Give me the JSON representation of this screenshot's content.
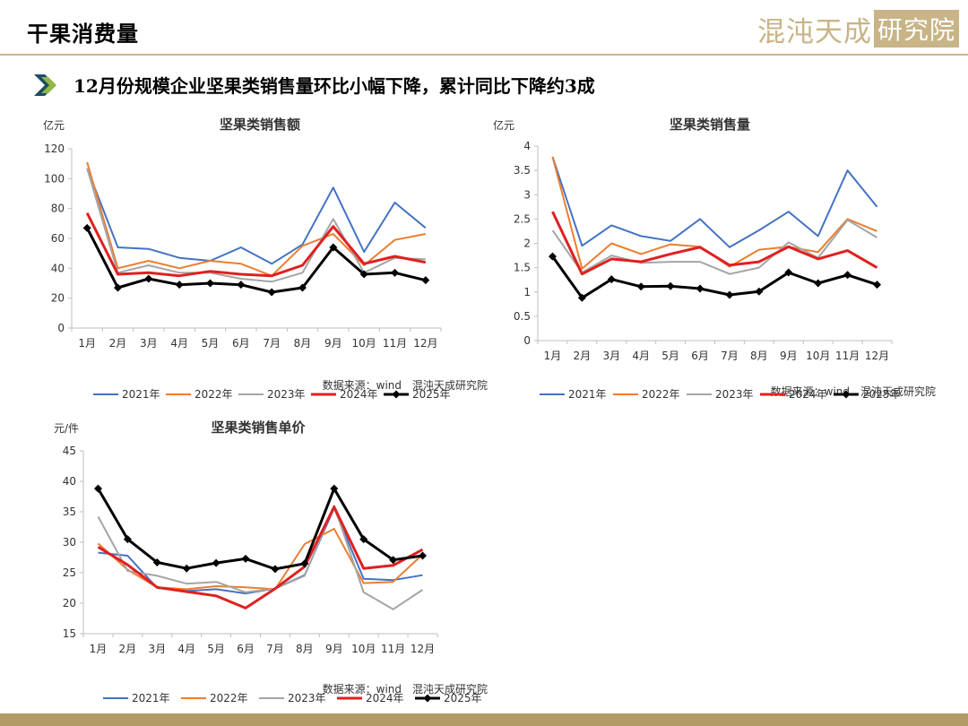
{
  "page": {
    "title": "干果消费量",
    "subtitle": "12月份规模企业坚果类销售量环比小幅下降，累计同比下降约3成",
    "logo_text_main": "混沌天成",
    "logo_text_box": "研究院",
    "icons": {
      "subtitle_marker": "double-chevron-right-icon"
    },
    "colors": {
      "accent": "#c9b68a",
      "footer": "#b39b66",
      "marker_dark": "#1f4e5f",
      "marker_light": "#8fb848"
    }
  },
  "chart_data": [
    {
      "type": "line",
      "title": "坚果类销售额",
      "unit_label": "亿元",
      "source": "数据来源：wind　混沌天成研究院",
      "categories": [
        "1月",
        "2月",
        "3月",
        "4月",
        "5月",
        "6月",
        "7月",
        "8月",
        "9月",
        "10月",
        "11月",
        "12月"
      ],
      "ylim": [
        0,
        120
      ],
      "yticks": [
        "0",
        "20",
        "40",
        "60",
        "80",
        "100",
        "120"
      ],
      "grid": false,
      "legend_position": "bottom",
      "series": [
        {
          "name": "2021年",
          "color": "#4472c4",
          "width": 2,
          "marker": false,
          "values": [
            107,
            54,
            53,
            47,
            45,
            54,
            43,
            56,
            94,
            51,
            84,
            67
          ]
        },
        {
          "name": "2022年",
          "color": "#ed7d31",
          "width": 2,
          "marker": false,
          "values": [
            111,
            40,
            45,
            40,
            45,
            43,
            35,
            55,
            63,
            42,
            59,
            63
          ]
        },
        {
          "name": "2023年",
          "color": "#a5a5a5",
          "width": 2,
          "marker": false,
          "values": [
            107,
            37,
            42,
            37,
            37,
            33,
            31,
            37,
            73,
            37,
            47,
            46
          ]
        },
        {
          "name": "2024年",
          "color": "#e02020",
          "width": 3,
          "marker": false,
          "values": [
            77,
            36,
            37,
            35,
            38,
            36,
            35,
            42,
            68,
            43,
            48,
            44
          ]
        },
        {
          "name": "2025年",
          "color": "#000000",
          "width": 3,
          "marker": true,
          "values": [
            67,
            27,
            33,
            29,
            30,
            29,
            24,
            27,
            54,
            36,
            37,
            32
          ]
        }
      ]
    },
    {
      "type": "line",
      "title": "坚果类销售量",
      "unit_label": "亿元",
      "source": "数据来源：wind　混沌天成研究院",
      "categories": [
        "1月",
        "2月",
        "3月",
        "4月",
        "5月",
        "6月",
        "7月",
        "8月",
        "9月",
        "10月",
        "11月",
        "12月"
      ],
      "ylim": [
        0,
        4
      ],
      "yticks": [
        "0",
        "0.5",
        "1",
        "1.5",
        "2",
        "2.5",
        "3",
        "3.5",
        "4"
      ],
      "grid": false,
      "legend_position": "bottom",
      "series": [
        {
          "name": "2021年",
          "color": "#4472c4",
          "width": 2,
          "marker": false,
          "values": [
            3.78,
            1.95,
            2.37,
            2.15,
            2.05,
            2.5,
            1.92,
            2.27,
            2.65,
            2.15,
            3.5,
            2.75
          ]
        },
        {
          "name": "2022年",
          "color": "#ed7d31",
          "width": 2,
          "marker": false,
          "values": [
            3.78,
            1.48,
            2.0,
            1.78,
            1.98,
            1.93,
            1.52,
            1.87,
            1.93,
            1.82,
            2.5,
            2.25
          ]
        },
        {
          "name": "2023年",
          "color": "#a5a5a5",
          "width": 2,
          "marker": false,
          "values": [
            2.27,
            1.4,
            1.75,
            1.6,
            1.62,
            1.62,
            1.37,
            1.5,
            2.02,
            1.7,
            2.48,
            2.12
          ]
        },
        {
          "name": "2024年",
          "color": "#e02020",
          "width": 3,
          "marker": false,
          "values": [
            2.65,
            1.37,
            1.68,
            1.62,
            1.78,
            1.92,
            1.55,
            1.62,
            1.93,
            1.68,
            1.85,
            1.5
          ]
        },
        {
          "name": "2025年",
          "color": "#000000",
          "width": 3,
          "marker": true,
          "values": [
            1.73,
            0.88,
            1.26,
            1.11,
            1.12,
            1.07,
            0.94,
            1.01,
            1.4,
            1.18,
            1.35,
            1.15
          ]
        }
      ]
    },
    {
      "type": "line",
      "title": "坚果类销售单价",
      "unit_label": "元/件",
      "source": "数据来源：wind　混沌天成研究院",
      "categories": [
        "1月",
        "2月",
        "3月",
        "4月",
        "5月",
        "6月",
        "7月",
        "8月",
        "9月",
        "10月",
        "11月",
        "12月"
      ],
      "ylim": [
        15,
        45
      ],
      "yticks": [
        "15",
        "20",
        "25",
        "30",
        "35",
        "40",
        "45"
      ],
      "grid": false,
      "legend_position": "bottom",
      "series": [
        {
          "name": "2021年",
          "color": "#4472c4",
          "width": 2,
          "marker": false,
          "values": [
            28.3,
            27.8,
            22.5,
            22.0,
            22.3,
            21.6,
            22.4,
            24.6,
            35.6,
            24.0,
            23.8,
            24.6
          ]
        },
        {
          "name": "2022年",
          "color": "#ed7d31",
          "width": 2,
          "marker": false,
          "values": [
            29.8,
            25.5,
            22.6,
            22.3,
            22.8,
            22.6,
            22.3,
            29.7,
            32.2,
            23.3,
            23.5,
            28.0
          ]
        },
        {
          "name": "2023年",
          "color": "#a5a5a5",
          "width": 2,
          "marker": false,
          "values": [
            34.2,
            25.3,
            24.5,
            23.2,
            23.5,
            21.8,
            22.4,
            24.5,
            36.0,
            21.8,
            19.0,
            22.2
          ]
        },
        {
          "name": "2024年",
          "color": "#e02020",
          "width": 3,
          "marker": false,
          "values": [
            29.2,
            26.3,
            22.6,
            21.9,
            21.2,
            19.2,
            22.4,
            26.0,
            35.8,
            25.7,
            26.2,
            28.8
          ]
        },
        {
          "name": "2025年",
          "color": "#000000",
          "width": 3,
          "marker": true,
          "values": [
            38.8,
            30.5,
            26.7,
            25.7,
            26.6,
            27.3,
            25.6,
            26.5,
            38.8,
            30.5,
            27.1,
            27.8
          ]
        }
      ]
    }
  ]
}
